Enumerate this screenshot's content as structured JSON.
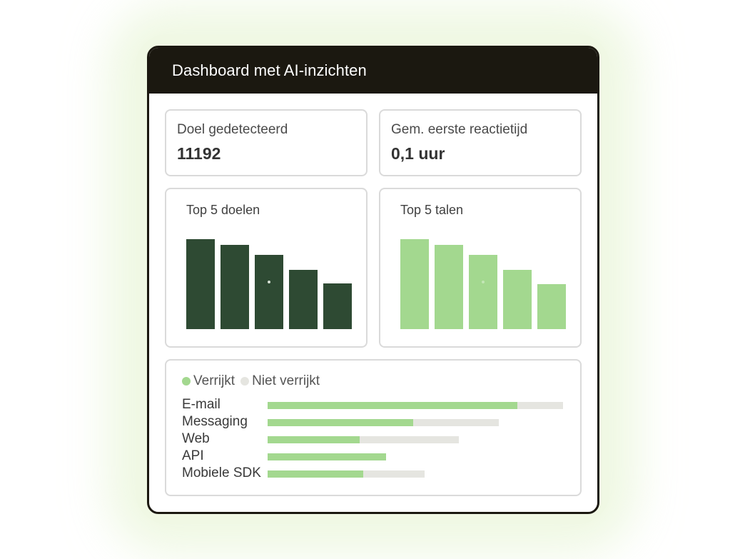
{
  "colors": {
    "dark_green": "#2e4a33",
    "light_green": "#a3d88f",
    "unenriched_gray": "#e5e5e0",
    "header_bg": "#1b1810"
  },
  "dashboard": {
    "title": "Dashboard met AI-inzichten",
    "stats": [
      {
        "label": "Doel gedetecteerd",
        "value": "11192"
      },
      {
        "label": "Gem. eerste reactietijd",
        "value": "0,1 uur"
      }
    ]
  },
  "chart_data": [
    {
      "type": "bar",
      "title": "Top 5 doelen",
      "values": [
        126,
        118,
        104,
        83,
        64
      ],
      "color": "dark_green"
    },
    {
      "type": "bar",
      "title": "Top 5 talen",
      "values": [
        126,
        118,
        104,
        83,
        63
      ],
      "color": "light_green"
    },
    {
      "type": "bar",
      "orientation": "horizontal",
      "stacked": true,
      "legend": [
        "Verrijkt",
        "Niet verrijkt"
      ],
      "categories": [
        "E-mail",
        "Messaging",
        "Web",
        "API",
        "Mobiele SDK"
      ],
      "series": [
        {
          "name": "Verrijkt",
          "values": [
            350,
            204,
            129,
            166,
            134
          ],
          "color": "light_green"
        },
        {
          "name": "Niet verrijkt",
          "values": [
            64,
            120,
            139,
            0,
            86
          ],
          "color": "unenriched_gray"
        }
      ]
    }
  ]
}
